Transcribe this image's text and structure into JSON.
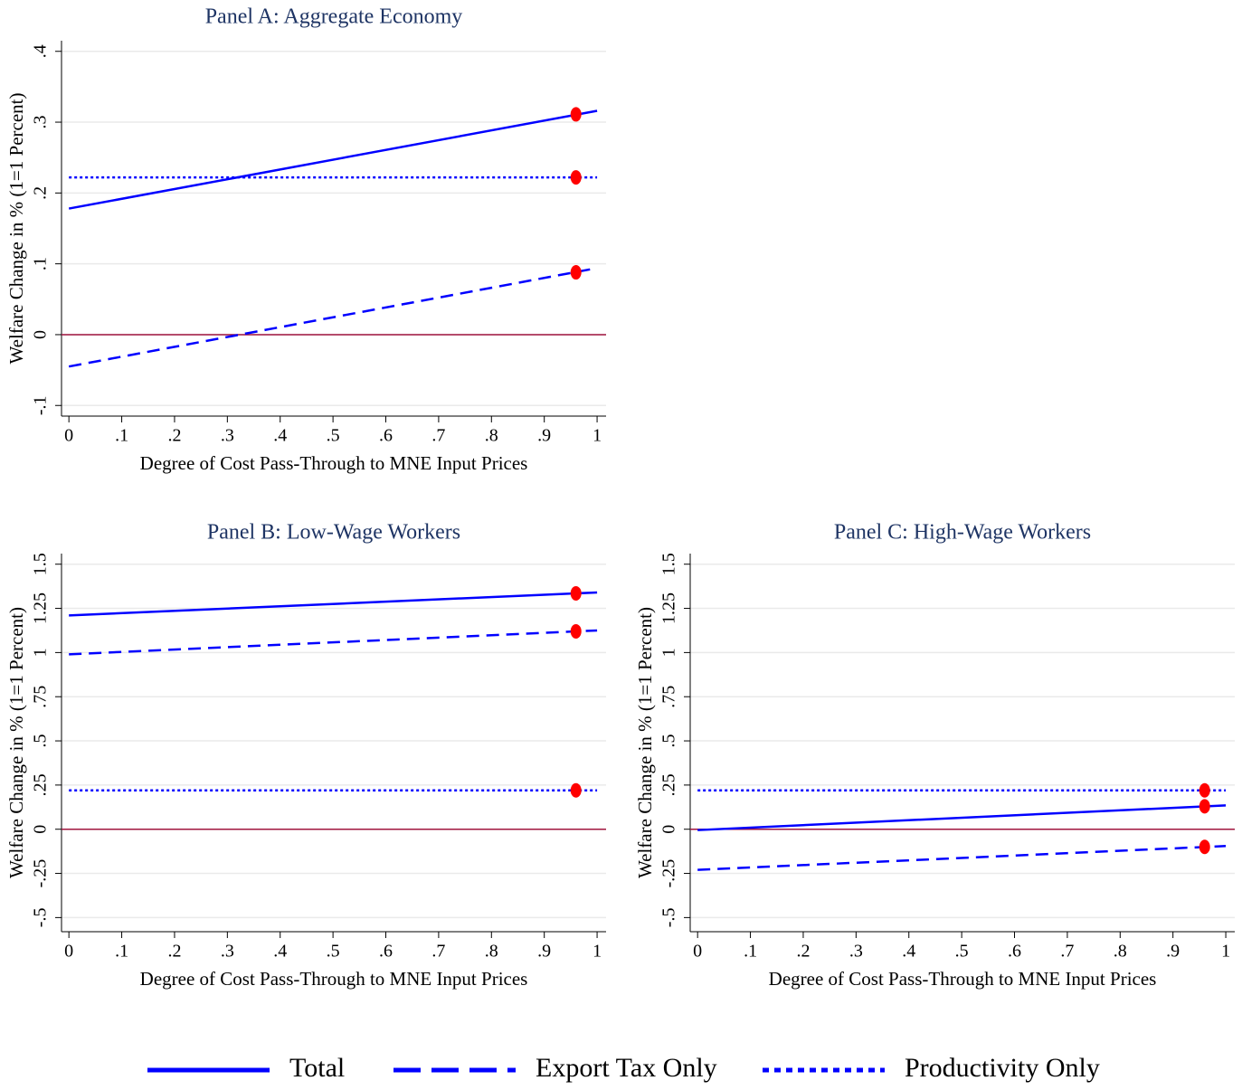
{
  "chart_data": [
    {
      "type": "line",
      "title": "Panel A: Aggregate Economy",
      "x_label": "Degree of Cost Pass-Through to MNE Input Prices",
      "y_label": "Welfare Change in % (1=1 Percent)",
      "x": [
        0,
        1
      ],
      "series": [
        {
          "name": "Total",
          "color": "#0000ff",
          "dash": "solid",
          "values": [
            0.178,
            0.316
          ]
        },
        {
          "name": "Export Tax Only",
          "color": "#0000ff",
          "dash": "dash",
          "values": [
            -0.045,
            0.094
          ]
        },
        {
          "name": "Productivity Only",
          "color": "#0000ff",
          "dash": "dot",
          "values": [
            0.222,
            0.222
          ]
        }
      ],
      "markers": {
        "color": "#ff0000",
        "x": [
          0.96,
          0.96,
          0.96
        ],
        "values": [
          0.311,
          0.088,
          0.222
        ]
      },
      "reference_line": {
        "value": 0,
        "color": "#a0153e"
      },
      "xlim": [
        -0.014,
        1.017
      ],
      "ylim": [
        -0.115,
        0.415
      ],
      "xticks": [
        0,
        {
          "value": 0.1,
          "label": ".1"
        },
        {
          "value": 0.2,
          "label": ".2"
        },
        {
          "value": 0.3,
          "label": ".3"
        },
        {
          "value": 0.4,
          "label": ".4"
        },
        {
          "value": 0.5,
          "label": ".5"
        },
        {
          "value": 0.6,
          "label": ".6"
        },
        {
          "value": 0.7,
          "label": ".7"
        },
        {
          "value": 0.8,
          "label": ".8"
        },
        {
          "value": 0.9,
          "label": ".9"
        },
        1
      ],
      "yticks": [
        {
          "value": -0.1,
          "label": "-.1"
        },
        0,
        {
          "value": 0.1,
          "label": ".1"
        },
        {
          "value": 0.2,
          "label": ".2"
        },
        {
          "value": 0.3,
          "label": ".3"
        },
        {
          "value": 0.4,
          "label": ".4"
        }
      ],
      "grid": true
    },
    {
      "type": "line",
      "title": "Panel B: Low-Wage Workers",
      "x_label": "Degree of Cost Pass-Through to MNE Input Prices",
      "y_label": "Welfare Change in % (1=1 Percent)",
      "x": [
        0,
        1
      ],
      "series": [
        {
          "name": "Total",
          "color": "#0000ff",
          "dash": "solid",
          "values": [
            1.21,
            1.34
          ]
        },
        {
          "name": "Export Tax Only",
          "color": "#0000ff",
          "dash": "dash",
          "values": [
            0.99,
            1.125
          ]
        },
        {
          "name": "Productivity Only",
          "color": "#0000ff",
          "dash": "dot",
          "values": [
            0.22,
            0.22
          ]
        }
      ],
      "markers": {
        "color": "#ff0000",
        "x": [
          0.96,
          0.96,
          0.96
        ],
        "values": [
          1.335,
          1.12,
          0.22
        ]
      },
      "reference_line": {
        "value": 0,
        "color": "#a0153e"
      },
      "xlim": [
        -0.014,
        1.017
      ],
      "ylim": [
        -0.58,
        1.56
      ],
      "xticks": [
        0,
        {
          "value": 0.1,
          "label": ".1"
        },
        {
          "value": 0.2,
          "label": ".2"
        },
        {
          "value": 0.3,
          "label": ".3"
        },
        {
          "value": 0.4,
          "label": ".4"
        },
        {
          "value": 0.5,
          "label": ".5"
        },
        {
          "value": 0.6,
          "label": ".6"
        },
        {
          "value": 0.7,
          "label": ".7"
        },
        {
          "value": 0.8,
          "label": ".8"
        },
        {
          "value": 0.9,
          "label": ".9"
        },
        1
      ],
      "yticks": [
        {
          "value": -0.5,
          "label": "-.5"
        },
        {
          "value": -0.25,
          "label": "-.25"
        },
        0,
        {
          "value": 0.25,
          "label": ".25"
        },
        {
          "value": 0.5,
          "label": ".5"
        },
        {
          "value": 0.75,
          "label": ".75"
        },
        1,
        1.25,
        1.5
      ],
      "grid": true
    },
    {
      "type": "line",
      "title": "Panel C: High-Wage Workers",
      "x_label": "Degree of Cost Pass-Through to MNE Input Prices",
      "y_label": "Welfare Change in % (1=1 Percent)",
      "x": [
        0,
        1
      ],
      "series": [
        {
          "name": "Total",
          "color": "#0000ff",
          "dash": "solid",
          "values": [
            -0.005,
            0.135
          ]
        },
        {
          "name": "Export Tax Only",
          "color": "#0000ff",
          "dash": "dash",
          "values": [
            -0.23,
            -0.095
          ]
        },
        {
          "name": "Productivity Only",
          "color": "#0000ff",
          "dash": "dot",
          "values": [
            0.22,
            0.22
          ]
        }
      ],
      "markers": {
        "color": "#ff0000",
        "x": [
          0.96,
          0.96,
          0.96
        ],
        "values": [
          0.13,
          -0.1,
          0.22
        ]
      },
      "reference_line": {
        "value": 0,
        "color": "#a0153e"
      },
      "xlim": [
        -0.014,
        1.017
      ],
      "ylim": [
        -0.58,
        1.56
      ],
      "xticks": [
        0,
        {
          "value": 0.1,
          "label": ".1"
        },
        {
          "value": 0.2,
          "label": ".2"
        },
        {
          "value": 0.3,
          "label": ".3"
        },
        {
          "value": 0.4,
          "label": ".4"
        },
        {
          "value": 0.5,
          "label": ".5"
        },
        {
          "value": 0.6,
          "label": ".6"
        },
        {
          "value": 0.7,
          "label": ".7"
        },
        {
          "value": 0.8,
          "label": ".8"
        },
        {
          "value": 0.9,
          "label": ".9"
        },
        1
      ],
      "yticks": [
        {
          "value": -0.5,
          "label": "-.5"
        },
        {
          "value": -0.25,
          "label": "-.25"
        },
        0,
        {
          "value": 0.25,
          "label": ".25"
        },
        {
          "value": 0.5,
          "label": ".5"
        },
        {
          "value": 0.75,
          "label": ".75"
        },
        1,
        1.25,
        1.5
      ],
      "grid": true
    }
  ]
}
